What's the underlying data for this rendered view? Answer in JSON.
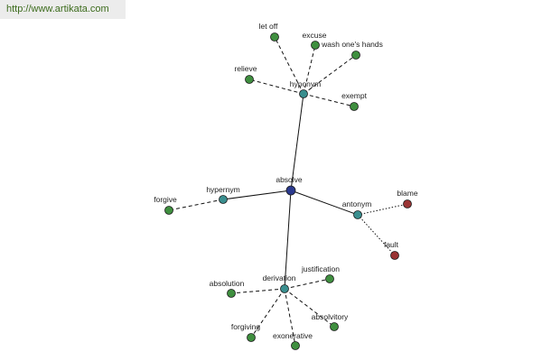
{
  "banner": {
    "url": "http://www.artikata.com"
  },
  "colors": {
    "center": "#2b3a8f",
    "relation": "#3a8f8f",
    "leaf": "#3f8f3f",
    "antonym_leaf": "#9a3434"
  },
  "graph": {
    "center": {
      "id": "absolve",
      "label": "absolve"
    },
    "relations": [
      {
        "id": "hyponym",
        "label": "hyponym",
        "leaves": [
          {
            "id": "let-off",
            "label": "let off"
          },
          {
            "id": "excuse",
            "label": "excuse"
          },
          {
            "id": "wash-ones-hands",
            "label": "wash one's hands"
          },
          {
            "id": "relieve",
            "label": "relieve"
          },
          {
            "id": "exempt",
            "label": "exempt"
          }
        ]
      },
      {
        "id": "hypernym",
        "label": "hypernym",
        "leaves": [
          {
            "id": "forgive",
            "label": "forgive"
          }
        ]
      },
      {
        "id": "antonym",
        "label": "antonym",
        "leaves": [
          {
            "id": "blame",
            "label": "blame"
          },
          {
            "id": "fault",
            "label": "fault"
          }
        ]
      },
      {
        "id": "derivation",
        "label": "derivation",
        "leaves": [
          {
            "id": "absolution",
            "label": "absolution"
          },
          {
            "id": "justification",
            "label": "justification"
          },
          {
            "id": "absolvitory",
            "label": "absolvitory"
          },
          {
            "id": "exonerative",
            "label": "exonerative"
          },
          {
            "id": "forgiving",
            "label": "forgiving"
          }
        ]
      }
    ]
  }
}
